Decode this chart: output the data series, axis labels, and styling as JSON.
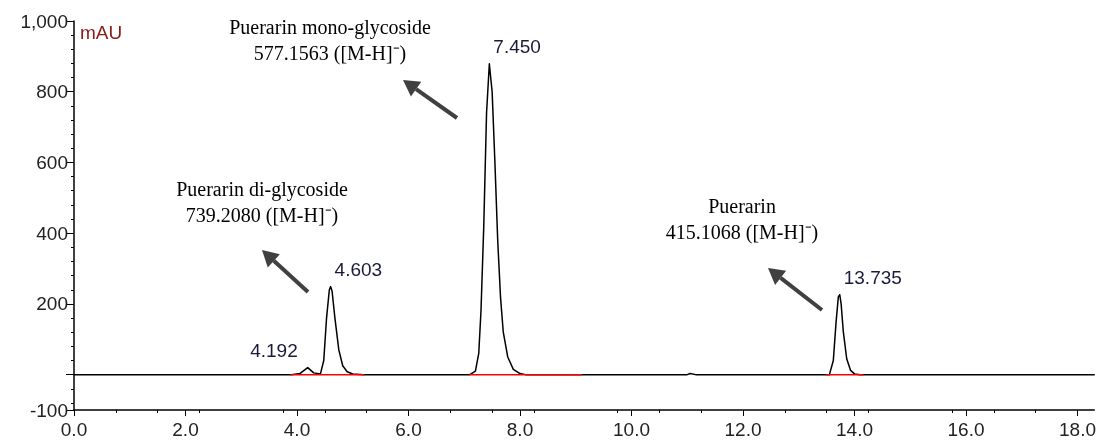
{
  "chart_data": {
    "type": "line",
    "ylabel": "mAU",
    "xlim": [
      0,
      18.3
    ],
    "xticks": [
      {
        "value": 0,
        "label": "0.0"
      },
      {
        "value": 2,
        "label": "2.0"
      },
      {
        "value": 4,
        "label": "4.0"
      },
      {
        "value": 6,
        "label": "6.0"
      },
      {
        "value": 8,
        "label": "8.0"
      },
      {
        "value": 10,
        "label": "10.0"
      },
      {
        "value": 12,
        "label": "12.0"
      },
      {
        "value": 14,
        "label": "14.0"
      },
      {
        "value": 16,
        "label": "16.0"
      },
      {
        "value": 18,
        "label": "18.0"
      }
    ],
    "ylim": [
      -100,
      1000
    ],
    "yticks": [
      -100,
      {
        "value": 0,
        "label": null
      },
      200,
      400,
      600,
      800,
      {
        "value": 1000,
        "label": "1,000"
      }
    ],
    "grid": false,
    "marker": "none",
    "line_style": "solid",
    "series": [
      {
        "color": "#000000",
        "x": [
          0,
          3.9,
          4.05,
          4.192,
          4.3,
          4.42,
          4.48,
          4.53,
          4.58,
          4.603,
          4.63,
          4.68,
          4.75,
          4.82,
          4.9,
          5.0,
          5.2,
          7.1,
          7.2,
          7.26,
          7.3,
          7.35,
          7.4,
          7.45,
          7.5,
          7.55,
          7.6,
          7.65,
          7.7,
          7.78,
          7.88,
          8.0,
          8.1,
          11.0,
          11.05,
          11.15,
          13.55,
          13.62,
          13.67,
          13.71,
          13.735,
          13.76,
          13.8,
          13.86,
          13.93,
          14.0,
          14.1,
          18.3
        ],
        "values": [
          0,
          0,
          3,
          20,
          5,
          2,
          40,
          160,
          240,
          249,
          235,
          160,
          70,
          25,
          8,
          2,
          0,
          0,
          10,
          60,
          180,
          420,
          740,
          879,
          800,
          600,
          380,
          220,
          120,
          50,
          15,
          3,
          0,
          0,
          3,
          0,
          0,
          40,
          150,
          220,
          226,
          200,
          120,
          45,
          12,
          2,
          0,
          0
        ]
      },
      {
        "color": "#ff0000",
        "x": [
          3.9,
          5.2,
          5.21,
          7.1,
          9.1,
          9.11,
          13.5,
          14.15
        ],
        "values": [
          0,
          0,
          null,
          0,
          0,
          null,
          0,
          0
        ]
      }
    ],
    "annotations": [
      {
        "text": "4.192",
        "x": 4.192,
        "y": 20
      },
      {
        "text": "4.603",
        "x": 4.603,
        "y": 249
      },
      {
        "text": "7.450",
        "x": 7.45,
        "y": 879
      },
      {
        "text": "13.735",
        "x": 13.735,
        "y": 226
      },
      "Puerarin di-glycoside\n739.2080 ([M-H]⁻)",
      "Puerarin mono-glycoside\n577.1563 ([M-H]⁻)",
      "Puerarin\n415.1068 ([M-H]⁻)"
    ]
  }
}
